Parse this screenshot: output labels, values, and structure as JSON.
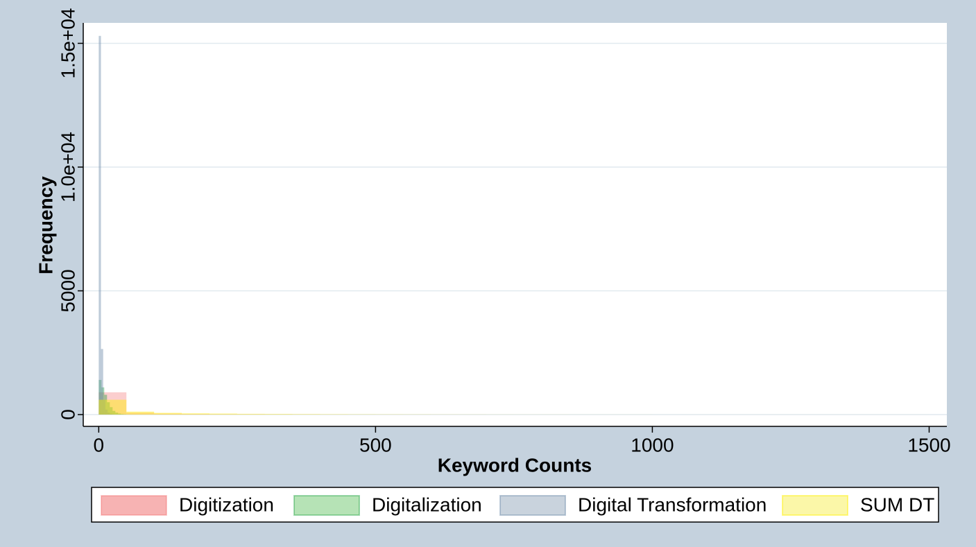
{
  "chart_data": {
    "type": "histogram",
    "xlabel": "Keyword Counts",
    "ylabel": "Frequency",
    "xlim": [
      -28,
      1532
    ],
    "ylim": [
      -476,
      15826
    ],
    "xticks": [
      0,
      500,
      1000,
      1500
    ],
    "yticks": [
      0,
      5000,
      {
        "value": 10000,
        "label": "1.0e+04"
      },
      {
        "value": 15000,
        "label": "1.5e+04"
      }
    ],
    "grid": true,
    "legend": "bottom",
    "series": [
      {
        "name": "Digitization",
        "color": "rgba(240,80,80,0.28)",
        "legend_color": "#f7b3b3",
        "bins": [
          0,
          50,
          100,
          150,
          200,
          250,
          300,
          350,
          400,
          450,
          500,
          550,
          600,
          650,
          700,
          750,
          800,
          850,
          900,
          950,
          1000
        ],
        "values": [
          900,
          80,
          40,
          25,
          15,
          10,
          8,
          6,
          5,
          4,
          3,
          3,
          2,
          2,
          1,
          1,
          1,
          1,
          1,
          1
        ]
      },
      {
        "name": "Digitalization",
        "color": "rgba(0,150,40,0.35)",
        "legend_color": "#b6e3b6",
        "bins": [
          0,
          5,
          10,
          15,
          20,
          25,
          30,
          35,
          40,
          45,
          50
        ],
        "values": [
          1400,
          1100,
          800,
          500,
          300,
          150,
          80,
          40,
          20,
          10
        ]
      },
      {
        "name": "Digital Transformation",
        "color": "rgba(110,140,170,0.45)",
        "legend_color": "#c9d3dd",
        "bins": [
          0,
          4,
          8,
          12,
          16,
          20,
          24,
          28
        ],
        "values": [
          15300,
          2650,
          600,
          200,
          80,
          30,
          10
        ]
      },
      {
        "name": "SUM DT",
        "color": "rgba(255,240,0,0.45)",
        "legend_color": "#fbf7a8",
        "bins": [
          0,
          50,
          100,
          150,
          200,
          250,
          300,
          350,
          400,
          450,
          500,
          550,
          600,
          650,
          700,
          750,
          800,
          850,
          900,
          950,
          1000,
          1050,
          1100,
          1150,
          1200,
          1250,
          1300,
          1350,
          1400,
          1450,
          1500
        ],
        "values": [
          600,
          120,
          70,
          50,
          40,
          30,
          25,
          20,
          15,
          12,
          10,
          8,
          6,
          5,
          4,
          3,
          3,
          2,
          2,
          2,
          1,
          1,
          1,
          1,
          1,
          1,
          1,
          1,
          1,
          1
        ]
      }
    ]
  }
}
